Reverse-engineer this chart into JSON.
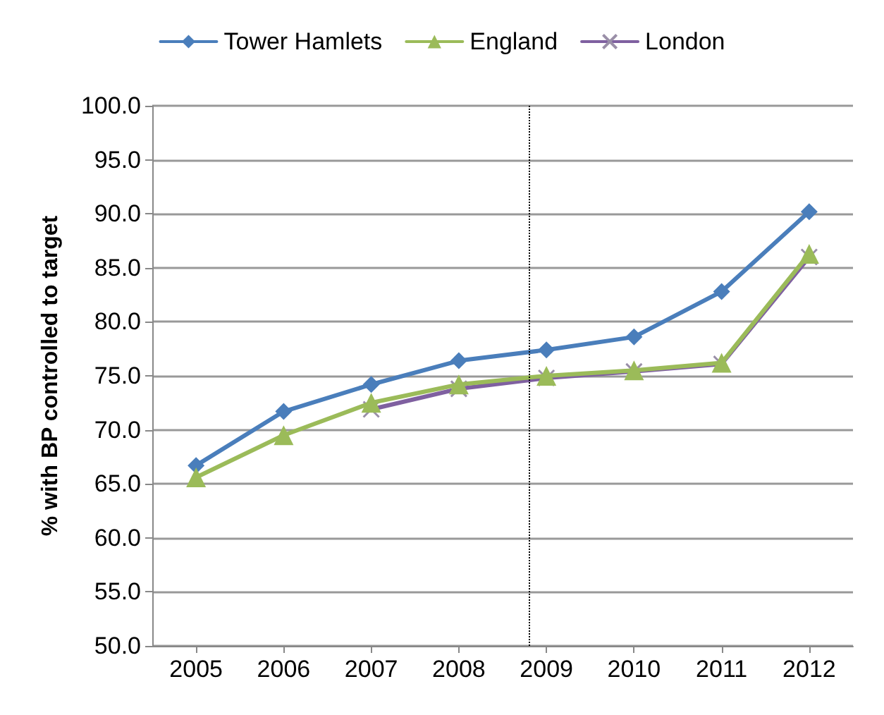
{
  "chart_data": {
    "type": "line",
    "ylabel": "% with BP controlled to target",
    "x": [
      2005,
      2006,
      2007,
      2008,
      2009,
      2010,
      2011,
      2012
    ],
    "xlim": [
      2004.5,
      2012.5
    ],
    "xticks": [
      2005,
      2006,
      2007,
      2008,
      2009,
      2010,
      2011,
      2012
    ],
    "ylim": [
      50,
      100
    ],
    "yticks": [
      {
        "value": 50,
        "label": "50.0"
      },
      {
        "value": 55,
        "label": "55.0"
      },
      {
        "value": 60,
        "label": "60.0"
      },
      {
        "value": 65,
        "label": "65.0"
      },
      {
        "value": 70,
        "label": "70.0"
      },
      {
        "value": 75,
        "label": "75.0"
      },
      {
        "value": 80,
        "label": "80.0"
      },
      {
        "value": 85,
        "label": "85.0"
      },
      {
        "value": 90,
        "label": "90.0"
      },
      {
        "value": 95,
        "label": "95.0"
      },
      {
        "value": 100,
        "label": "100.0"
      }
    ],
    "grid": "y",
    "legend": "top",
    "series": [
      {
        "name": "Tower Hamlets",
        "color": "#4a7ebb",
        "marker": "diamond",
        "values": [
          66.7,
          71.7,
          74.2,
          76.4,
          77.4,
          78.6,
          82.8,
          90.2
        ]
      },
      {
        "name": "England",
        "color": "#9bbb59",
        "marker": "triangle",
        "values": [
          65.6,
          69.5,
          72.5,
          74.2,
          75.0,
          75.5,
          76.2,
          86.3
        ]
      },
      {
        "name": "London",
        "color": "#7f60a0",
        "marker": "cross",
        "values": [
          null,
          null,
          71.9,
          73.8,
          74.8,
          75.4,
          76.1,
          86.0
        ]
      }
    ],
    "ref_lines": [
      {
        "axis": "x",
        "value": 2008.8,
        "color": "#000000",
        "line_style": "dotted"
      }
    ]
  }
}
